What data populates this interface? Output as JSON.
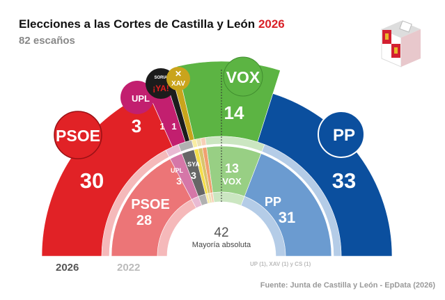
{
  "title": "Elecciones a las Cortes de Castilla y León",
  "title_year": "2026",
  "subtitle": "82 escaños",
  "majority": {
    "value": "42",
    "label": "Mayoría absoluta"
  },
  "footnote": "UP (1), XAV (1) y CS (1)",
  "source": "Fuente: Junta de Castilla y León - EpData (2026)",
  "chart_data": {
    "type": "pie",
    "shape": "semicircle-parliament",
    "total_seats": 82,
    "series": [
      {
        "name": "2026",
        "values": [
          {
            "party": "PSOE",
            "seats": 30,
            "color": "#e12226"
          },
          {
            "party": "UPL",
            "seats": 3,
            "color": "#c21f6f"
          },
          {
            "party": "¡Soria YA!",
            "seats": 1,
            "color": "#1c1c1c"
          },
          {
            "party": "XAV",
            "seats": 1,
            "color": "#c9a41c"
          },
          {
            "party": "VOX",
            "seats": 14,
            "color": "#5cb443"
          },
          {
            "party": "PP",
            "seats": 33,
            "color": "#0b4f9e"
          }
        ]
      },
      {
        "name": "2022",
        "values": [
          {
            "party": "PSOE",
            "seats": 28,
            "color": "#ec7577"
          },
          {
            "party": "UPL",
            "seats": 3,
            "color": "#d577a8"
          },
          {
            "party": "SYA",
            "seats": 3,
            "color": "#666666"
          },
          {
            "party": "UP",
            "seats": 1,
            "color": "#f4dd4a"
          },
          {
            "party": "XAV",
            "seats": 1,
            "color": "#d9c46c"
          },
          {
            "party": "CS",
            "seats": 1,
            "color": "#f0a070"
          },
          {
            "party": "VOX",
            "seats": 13,
            "color": "#98cf84"
          },
          {
            "party": "PP",
            "seats": 31,
            "color": "#6b9bd0"
          }
        ]
      }
    ],
    "labels": {
      "psoe26": "30",
      "upl26": "3",
      "sya26": "1",
      "xav26": "1",
      "vox26": "14",
      "pp26": "33",
      "psoe22": "28",
      "upl22": "3",
      "sya22": "3",
      "vox22": "13",
      "pp22": "31",
      "psoe_logo": "PSOE",
      "upl_logo": "UPL",
      "sya_logo": "¡YA!",
      "sya_logo_top": "SORIA",
      "xav_logo": "XAV",
      "vox_logo": "VOX",
      "pp_logo": "PP",
      "upl22_name": "UPL",
      "sya22_name": "SYA",
      "vox22_name": "VOX",
      "psoe22_name": "PSOE",
      "pp22_name": "PP"
    }
  }
}
